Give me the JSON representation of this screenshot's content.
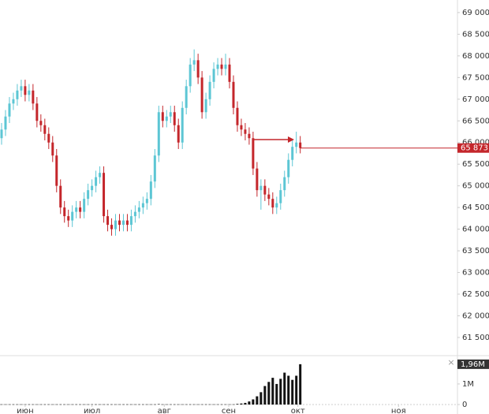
{
  "chart_data": {
    "type": "candlestick",
    "xlim": [
      0,
      116
    ],
    "xticks": [
      {
        "value": 6,
        "label": "июн"
      },
      {
        "value": 23,
        "label": "июл"
      },
      {
        "value": 41.4,
        "label": "авг"
      },
      {
        "value": 57.8,
        "label": "сен"
      },
      {
        "value": 75.4,
        "label": "окт"
      },
      {
        "value": 101,
        "label": "ноя"
      }
    ],
    "ylim": [
      61080,
      69290
    ],
    "yticks": [
      {
        "value": 69000,
        "label": "69 000"
      },
      {
        "value": 68500,
        "label": "68 500"
      },
      {
        "value": 68000,
        "label": "68 000"
      },
      {
        "value": 67500,
        "label": "67 500"
      },
      {
        "value": 67000,
        "label": "67 000"
      },
      {
        "value": 66500,
        "label": "66 500"
      },
      {
        "value": 66000,
        "label": "66 000"
      },
      {
        "value": 65500,
        "label": "65 500"
      },
      {
        "value": 65000,
        "label": "65 000"
      },
      {
        "value": 64500,
        "label": "64 500"
      },
      {
        "value": 64000,
        "label": "64 000"
      },
      {
        "value": 63500,
        "label": "63 500"
      },
      {
        "value": 63000,
        "label": "63 000"
      },
      {
        "value": 62500,
        "label": "62 500"
      },
      {
        "value": 62000,
        "label": "62 000"
      },
      {
        "value": 61500,
        "label": "61 500"
      }
    ],
    "y2lim": [
      0,
      2300000
    ],
    "y2ticks": [
      0,
      {
        "value": 1000000,
        "label": "1M"
      }
    ],
    "up_color": "#5cc6d4",
    "down_color": "#c4262b",
    "volume_color": "#111111",
    "open": [
      66100,
      66300,
      66600,
      66900,
      67000,
      67200,
      67300,
      67100,
      67200,
      66900,
      66500,
      66400,
      66200,
      66000,
      65700,
      65000,
      64500,
      64300,
      64200,
      64400,
      64500,
      64400,
      64700,
      64900,
      65000,
      65200,
      65300,
      64300,
      64100,
      64000,
      64200,
      64100,
      64200,
      64100,
      64300,
      64400,
      64500,
      64600,
      64700,
      65100,
      65700,
      66700,
      66500,
      66600,
      66700,
      66400,
      66000,
      66800,
      67300,
      67800,
      67900,
      67500,
      66700,
      67000,
      67400,
      67700,
      67800,
      67700,
      67800,
      67400,
      66800,
      66400,
      66300,
      66200,
      66100,
      65400,
      64900,
      65000,
      64800,
      64700,
      64500,
      64600,
      64900,
      65200,
      65600,
      65900,
      66000
    ],
    "high": [
      66450,
      66750,
      67050,
      67150,
      67350,
      67450,
      67450,
      67350,
      67350,
      67050,
      66650,
      66550,
      66350,
      66150,
      65850,
      65150,
      64650,
      64450,
      64550,
      64650,
      64650,
      64850,
      65050,
      65150,
      65350,
      65450,
      65450,
      64450,
      64250,
      64350,
      64350,
      64350,
      64350,
      64450,
      64550,
      64650,
      64750,
      64850,
      65250,
      65850,
      66850,
      66850,
      66750,
      66850,
      66850,
      66550,
      66950,
      67450,
      67950,
      68150,
      68050,
      67650,
      67150,
      67550,
      67850,
      67950,
      67950,
      68050,
      67950,
      67550,
      66950,
      66550,
      66450,
      66350,
      66250,
      65550,
      65150,
      65150,
      64950,
      64850,
      64750,
      65050,
      65350,
      65750,
      66050,
      66250,
      66150
    ],
    "low": [
      65950,
      66150,
      66450,
      66750,
      66850,
      67050,
      66950,
      66950,
      66750,
      66350,
      66250,
      66050,
      65850,
      65550,
      64850,
      64350,
      64150,
      64050,
      64050,
      64250,
      64250,
      64250,
      64550,
      64750,
      64850,
      65050,
      64150,
      63950,
      63850,
      63850,
      63950,
      63950,
      63950,
      63950,
      64150,
      64250,
      64350,
      64450,
      64550,
      64950,
      65550,
      66350,
      66350,
      66450,
      66250,
      65850,
      65850,
      66650,
      67150,
      67650,
      67350,
      66550,
      66550,
      66850,
      67250,
      67550,
      67550,
      67550,
      67250,
      66650,
      66250,
      66150,
      66050,
      65950,
      65250,
      64750,
      64450,
      64650,
      64550,
      64350,
      64350,
      64450,
      64750,
      65050,
      65450,
      65750,
      65750
    ],
    "close": [
      66300,
      66600,
      66900,
      67000,
      67200,
      67300,
      67100,
      67200,
      66900,
      66500,
      66400,
      66200,
      66000,
      65700,
      65000,
      64500,
      64300,
      64200,
      64400,
      64500,
      64400,
      64700,
      64900,
      65000,
      65200,
      65300,
      64300,
      64100,
      64000,
      64200,
      64100,
      64200,
      64100,
      64300,
      64400,
      64500,
      64600,
      64700,
      65100,
      65700,
      66700,
      66500,
      66600,
      66700,
      66400,
      66000,
      66800,
      67300,
      67800,
      67900,
      67500,
      66700,
      67000,
      67400,
      67700,
      67800,
      67700,
      67800,
      67400,
      66800,
      66400,
      66300,
      66200,
      66100,
      65400,
      64900,
      65000,
      64800,
      64700,
      64500,
      64600,
      64900,
      65200,
      65600,
      65900,
      66000,
      65873
    ],
    "volume": [
      10000,
      10000,
      10000,
      10000,
      10000,
      10000,
      10000,
      10000,
      10000,
      10000,
      10000,
      10000,
      10000,
      10000,
      10000,
      10000,
      10000,
      10000,
      10000,
      10000,
      10000,
      10000,
      10000,
      10000,
      10000,
      10000,
      10000,
      10000,
      10000,
      10000,
      10000,
      10000,
      10000,
      10000,
      10000,
      10000,
      10000,
      10000,
      10000,
      10000,
      20000,
      10000,
      10000,
      10000,
      10000,
      10000,
      10000,
      10000,
      10000,
      10000,
      10000,
      10000,
      10000,
      10000,
      10000,
      10000,
      10000,
      10000,
      10000,
      10000,
      30000,
      50000,
      80000,
      150000,
      250000,
      400000,
      600000,
      900000,
      1100000,
      1300000,
      1000000,
      1250000,
      1550000,
      1400000,
      1200000,
      1400000,
      1960000
    ],
    "last_price": {
      "value": 65873,
      "label": "65 873"
    },
    "last_volume": {
      "value": 1960000,
      "label": "1,96M"
    }
  }
}
